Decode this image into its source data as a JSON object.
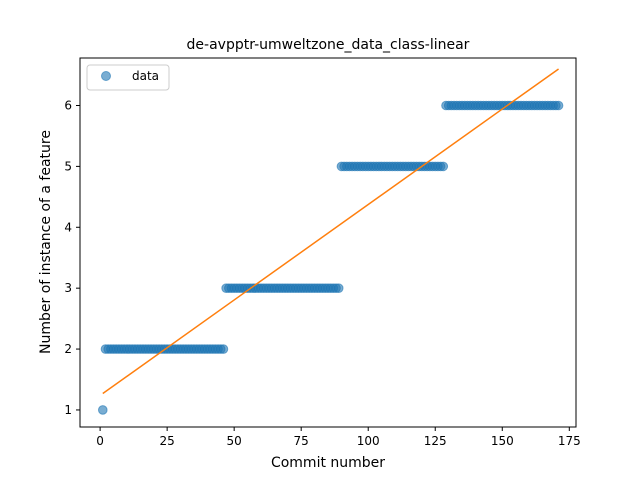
{
  "chart_data": {
    "type": "scatter",
    "title": "de-avpptr-umweltzone_data_class-linear",
    "xlabel": "Commit number",
    "ylabel": "Number of instance of a feature",
    "xlim": [
      -7.5,
      177.5
    ],
    "ylim": [
      0.72,
      6.78
    ],
    "xticks": [
      "0",
      "25",
      "50",
      "75",
      "100",
      "125",
      "150",
      "175"
    ],
    "yticks": [
      "1",
      "2",
      "3",
      "4",
      "5",
      "6"
    ],
    "grid": false,
    "legend": {
      "placement": "top-left",
      "entries": [
        "data"
      ]
    },
    "colors": {
      "data": "#1f77b4",
      "fit": "#ff7f0e"
    },
    "series": [
      {
        "name": "data",
        "kind": "scatter",
        "segments": [
          {
            "x_start": 1,
            "x_end": 1,
            "y": 1
          },
          {
            "x_start": 2,
            "x_end": 46,
            "y": 2
          },
          {
            "x_start": 47,
            "x_end": 89,
            "y": 3
          },
          {
            "x_start": 90,
            "x_end": 128,
            "y": 5
          },
          {
            "x_start": 129,
            "x_end": 171,
            "y": 6
          }
        ]
      },
      {
        "kind": "line",
        "x": [
          1,
          171
        ],
        "y": [
          1.27,
          6.6
        ]
      }
    ]
  }
}
